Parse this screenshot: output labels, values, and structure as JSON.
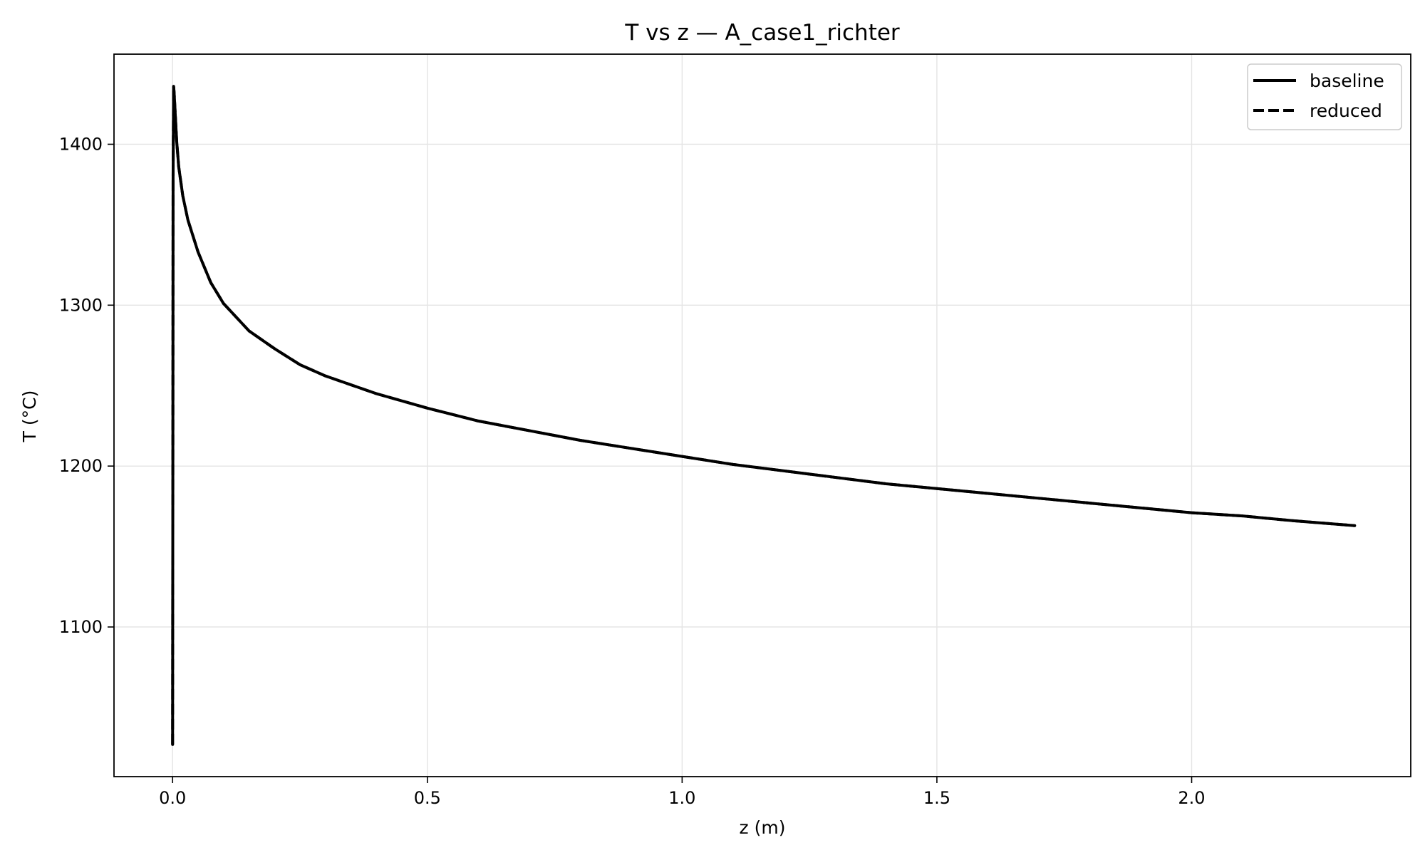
{
  "chart_data": {
    "type": "line",
    "title": "T vs z — A_case1_richter",
    "xlabel": "z (m)",
    "ylabel": "T (°C)",
    "xlim": [
      -0.115,
      2.43
    ],
    "ylim": [
      1007,
      1456
    ],
    "xticks": [
      0.0,
      0.5,
      1.0,
      1.5,
      2.0
    ],
    "xtick_labels": [
      "0.0",
      "0.5",
      "1.0",
      "1.5",
      "2.0"
    ],
    "yticks": [
      1100,
      1200,
      1300,
      1400
    ],
    "ytick_labels": [
      "1100",
      "1200",
      "1300",
      "1400"
    ],
    "grid": true,
    "legend_position": "top-right",
    "series": [
      {
        "name": "baseline",
        "style": "solid",
        "color": "#000000",
        "x": [
          0.0,
          0.0005,
          0.001,
          0.002,
          0.003,
          0.005,
          0.008,
          0.012,
          0.02,
          0.03,
          0.05,
          0.075,
          0.1,
          0.15,
          0.2,
          0.25,
          0.3,
          0.4,
          0.5,
          0.6,
          0.7,
          0.8,
          0.9,
          1.0,
          1.1,
          1.2,
          1.3,
          1.4,
          1.5,
          1.6,
          1.7,
          1.8,
          1.9,
          2.0,
          2.1,
          2.2,
          2.32
        ],
        "y": [
          1027,
          1200,
          1380,
          1436,
          1432,
          1420,
          1402,
          1386,
          1368,
          1353,
          1333,
          1314,
          1301,
          1284,
          1273,
          1263,
          1256,
          1245,
          1236,
          1228,
          1222,
          1216,
          1211,
          1206,
          1201,
          1197,
          1193,
          1189,
          1186,
          1183,
          1180,
          1177,
          1174,
          1171,
          1169,
          1166,
          1163
        ]
      },
      {
        "name": "reduced",
        "style": "dashed",
        "color": "#000000",
        "x": [
          0.0,
          0.0005,
          0.001,
          0.002,
          0.003,
          0.005,
          0.008,
          0.012,
          0.02,
          0.03,
          0.05,
          0.075,
          0.1,
          0.15,
          0.2,
          0.25,
          0.3,
          0.4,
          0.5,
          0.6,
          0.7,
          0.8,
          0.9,
          1.0,
          1.1,
          1.2,
          1.3,
          1.4,
          1.5,
          1.6,
          1.7,
          1.8,
          1.9,
          2.0,
          2.1,
          2.2,
          2.32
        ],
        "y": [
          1027,
          1200,
          1380,
          1436,
          1432,
          1420,
          1402,
          1386,
          1368,
          1353,
          1333,
          1314,
          1301,
          1284,
          1273,
          1263,
          1256,
          1245,
          1236,
          1228,
          1222,
          1216,
          1211,
          1206,
          1201,
          1197,
          1193,
          1189,
          1186,
          1183,
          1180,
          1177,
          1174,
          1171,
          1169,
          1166,
          1163
        ]
      }
    ]
  }
}
